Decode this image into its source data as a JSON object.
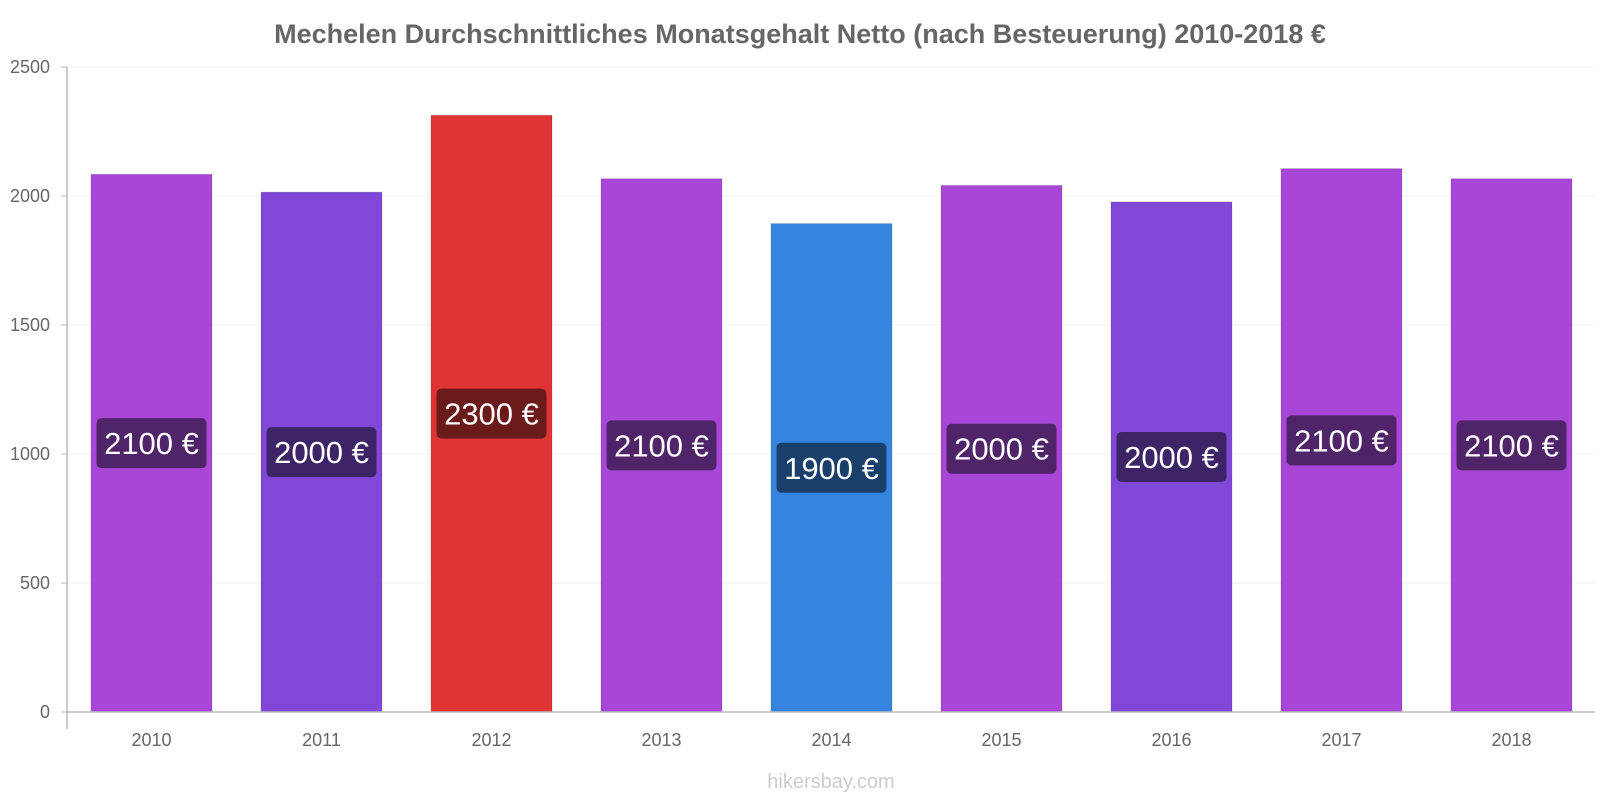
{
  "chart_data": {
    "type": "bar",
    "title": "Mechelen Durchschnittliches Monatsgehalt Netto (nach Besteuerung) 2010-2018 €",
    "xlabel": "",
    "ylabel": "",
    "categories": [
      "2010",
      "2011",
      "2012",
      "2013",
      "2014",
      "2015",
      "2016",
      "2017",
      "2018"
    ],
    "values": [
      2084,
      2015,
      2313,
      2067,
      1893,
      2041,
      1977,
      2106,
      2067
    ],
    "labels": [
      "2100 €",
      "2000 €",
      "2300 €",
      "2100 €",
      "1900 €",
      "2000 €",
      "2000 €",
      "2100 €",
      "2100 €"
    ],
    "bar_colors": [
      "#a846d8",
      "#8148d8",
      "#e03434",
      "#a846d8",
      "#3584e0",
      "#a846d8",
      "#8148d8",
      "#a846d8",
      "#a846d8"
    ],
    "label_colors": [
      "#4f2468",
      "#3c2466",
      "#6b1a1a",
      "#4f2468",
      "#1a3f6b",
      "#4f2468",
      "#3c2466",
      "#4f2468",
      "#4f2468"
    ],
    "ylim": [
      0,
      2500
    ],
    "yticks": [
      "0",
      "500",
      "1000",
      "1500",
      "2000",
      "2500"
    ],
    "grid": true,
    "legend": "none"
  },
  "watermark": "hikersbay.com"
}
